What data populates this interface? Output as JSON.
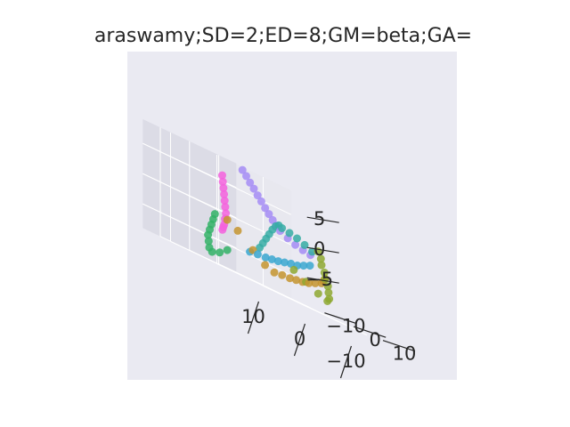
{
  "chart_data": {
    "type": "scatter",
    "projection": "3d",
    "title": "araswamy;SD=2;ED=8;GM=beta;GA=",
    "xlabel": "",
    "ylabel": "",
    "zlabel": "",
    "x_ticks": [
      "−10",
      "0",
      "10"
    ],
    "y_ticks": [
      "−10",
      "0",
      "10"
    ],
    "z_ticks": [
      "−5",
      "0",
      "5"
    ],
    "xlim": [
      -16,
      16
    ],
    "ylim": [
      -16,
      16
    ],
    "zlim": [
      -9,
      9
    ],
    "grid": true,
    "legend": "none",
    "colors": {
      "axes_background": "#eaeaf2",
      "pane_light": "#e8e8ef",
      "pane_dark": "#dcdce6",
      "gridline": "#ffffff",
      "text": "#262626"
    },
    "series": [
      {
        "color": "#a48cf4",
        "points": [
          [
            -3,
            -12,
            8.5
          ],
          [
            -3.5,
            -11.5,
            7.8
          ],
          [
            -4,
            -11,
            7
          ],
          [
            -4.5,
            -10.5,
            6.3
          ],
          [
            -5,
            -10,
            5.5
          ],
          [
            -5.5,
            -9.5,
            4.8
          ],
          [
            -6,
            -9,
            4
          ],
          [
            -6.5,
            -8.5,
            3.3
          ],
          [
            -7,
            -8,
            2.6
          ],
          [
            -7.5,
            -7.5,
            2
          ],
          [
            -8,
            -7,
            1.4
          ],
          [
            -9,
            -6,
            0.8
          ],
          [
            -10,
            -5,
            0.3
          ],
          [
            -11,
            -4,
            0
          ],
          [
            -12,
            -3,
            -0.2
          ]
        ]
      },
      {
        "color": "#f461dd",
        "points": [
          [
            2,
            -11,
            6
          ],
          [
            2.5,
            -10,
            5
          ],
          [
            3,
            -9,
            4
          ],
          [
            3.5,
            -8,
            3
          ],
          [
            4,
            -7,
            2
          ],
          [
            4.5,
            -6,
            1
          ],
          [
            5,
            -5,
            0
          ],
          [
            5.5,
            -4.5,
            -1
          ],
          [
            6,
            -4,
            -2
          ],
          [
            6.5,
            -3.5,
            -2.5
          ],
          [
            7,
            -3,
            -3
          ]
        ]
      },
      {
        "color": "#36ada4",
        "points": [
          [
            -13,
            -4,
            0.5
          ],
          [
            -12,
            -5,
            1
          ],
          [
            -11,
            -6,
            1.5
          ],
          [
            -10,
            -7,
            1.8
          ],
          [
            -9,
            -8,
            2
          ],
          [
            -8,
            -7.5,
            2.2
          ],
          [
            -7,
            -7,
            1.8
          ],
          [
            -6,
            -6.5,
            1
          ],
          [
            -5,
            -6,
            0
          ],
          [
            -4,
            -5.5,
            -1
          ],
          [
            -3,
            -5,
            -2
          ],
          [
            -2,
            -4.5,
            -3
          ]
        ]
      },
      {
        "color": "#39a7d0",
        "points": [
          [
            -10,
            0,
            -2
          ],
          [
            -8,
            1,
            -2.5
          ],
          [
            -6,
            2,
            -3
          ],
          [
            -4,
            3,
            -3.2
          ],
          [
            -2,
            4,
            -3.5
          ],
          [
            0,
            5,
            -3.8
          ],
          [
            2,
            6,
            -4
          ],
          [
            4,
            7,
            -4.2
          ],
          [
            6,
            7.5,
            -4.3
          ],
          [
            8,
            8,
            -4.5
          ]
        ]
      },
      {
        "color": "#c4942f",
        "points": [
          [
            -12,
            2,
            -3
          ],
          [
            -11,
            3,
            -3.5
          ],
          [
            -10,
            4,
            -4
          ],
          [
            -8,
            5,
            -4.5
          ],
          [
            -6,
            6,
            -5
          ],
          [
            -4,
            7,
            -5.3
          ],
          [
            -2,
            8,
            -5.5
          ],
          [
            0,
            9,
            -5.7
          ],
          [
            2,
            9.5,
            -5.8
          ],
          [
            4,
            10,
            -6
          ],
          [
            6,
            10,
            -5.5
          ],
          [
            8,
            9,
            -4
          ],
          [
            10,
            7,
            -2
          ],
          [
            11,
            5,
            -1
          ]
        ]
      },
      {
        "color": "#8ea831",
        "points": [
          [
            -13,
            -2,
            1
          ],
          [
            -13,
            -1,
            0
          ],
          [
            -12.5,
            0,
            -1
          ],
          [
            -12.5,
            1,
            -2
          ],
          [
            -12,
            2,
            -3
          ],
          [
            -12,
            3,
            -4
          ],
          [
            -11.5,
            4,
            -5
          ],
          [
            -11,
            5,
            -6
          ],
          [
            -10,
            6,
            -6.5
          ],
          [
            -8,
            6,
            -6
          ],
          [
            -6,
            5,
            -5
          ],
          [
            -4,
            4,
            -4
          ]
        ]
      },
      {
        "color": "#32b166",
        "points": [
          [
            8,
            -4,
            -1
          ],
          [
            9,
            -3,
            -2
          ],
          [
            10,
            -2,
            -3
          ],
          [
            11,
            -1,
            -4
          ],
          [
            12,
            0,
            -5
          ],
          [
            12.5,
            1,
            -6
          ],
          [
            13,
            2,
            -7
          ],
          [
            13,
            3,
            -7.5
          ],
          [
            12,
            4,
            -7
          ],
          [
            11,
            5,
            -6
          ]
        ]
      }
    ]
  }
}
